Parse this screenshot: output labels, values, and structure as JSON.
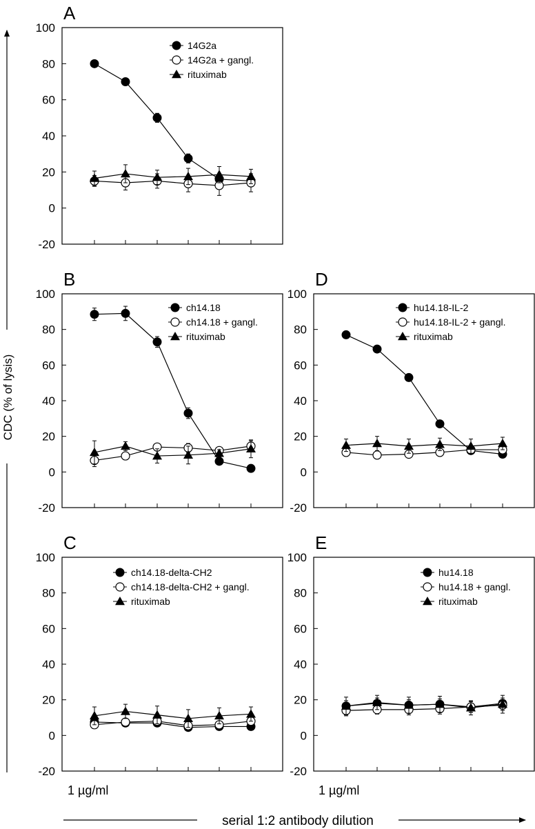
{
  "figure": {
    "y_axis_label": "CDC (% of lysis)",
    "x_axis_label": "serial 1:2 antibody dilution",
    "x_start_label": "1 µg/ml"
  },
  "chart_data": [
    {
      "panel": "A",
      "type": "line",
      "title": "",
      "xlabel": "",
      "ylabel": "CDC (% of lysis)",
      "ylim": [
        -20,
        100
      ],
      "yticks": [
        -20,
        0,
        20,
        40,
        60,
        80,
        100
      ],
      "x": [
        1,
        2,
        3,
        4,
        5,
        6
      ],
      "legend_position": "top-right",
      "series": [
        {
          "name": "14G2a",
          "marker": "filled-circle",
          "values": [
            80,
            70,
            50,
            27.5,
            16,
            15
          ],
          "errors": [
            1,
            2,
            2.5,
            2.5,
            3,
            2
          ]
        },
        {
          "name": "14G2a + gangl.",
          "marker": "open-circle",
          "values": [
            15,
            14,
            15,
            13.5,
            12.5,
            14
          ],
          "errors": [
            3,
            4,
            4,
            4.5,
            5.5,
            5
          ]
        },
        {
          "name": "rituximab",
          "marker": "filled-triangle",
          "values": [
            16.5,
            19,
            17,
            17.5,
            18.5,
            17.5
          ],
          "errors": [
            4,
            5,
            4,
            4.5,
            4.5,
            4
          ]
        }
      ]
    },
    {
      "panel": "B",
      "type": "line",
      "title": "",
      "xlabel": "",
      "ylabel": "CDC (% of lysis)",
      "ylim": [
        -20,
        100
      ],
      "yticks": [
        -20,
        0,
        20,
        40,
        60,
        80,
        100
      ],
      "x": [
        1,
        2,
        3,
        4,
        5,
        6
      ],
      "legend_position": "top-right",
      "series": [
        {
          "name": "ch14.18",
          "marker": "filled-circle",
          "values": [
            88.5,
            89,
            73,
            33,
            6,
            2
          ],
          "errors": [
            3.5,
            4,
            3,
            3,
            1.5,
            1
          ]
        },
        {
          "name": "ch14.18 + gangl.",
          "marker": "open-circle",
          "values": [
            6.5,
            9,
            14,
            13.5,
            12,
            14.5
          ],
          "errors": [
            3.5,
            1.5,
            1.5,
            2.5,
            2,
            3
          ]
        },
        {
          "name": "rituximab",
          "marker": "filled-triangle",
          "values": [
            11,
            14.5,
            9,
            9.5,
            10.5,
            13
          ],
          "errors": [
            6.5,
            2.5,
            4,
            5,
            2,
            5
          ]
        }
      ]
    },
    {
      "panel": "C",
      "type": "line",
      "title": "",
      "xlabel": "",
      "ylabel": "CDC (% of lysis)",
      "ylim": [
        -20,
        100
      ],
      "yticks": [
        -20,
        0,
        20,
        40,
        60,
        80,
        100
      ],
      "x": [
        1,
        2,
        3,
        4,
        5,
        6
      ],
      "legend_position": "top-right",
      "series": [
        {
          "name": "ch14.18-delta-CH2",
          "marker": "filled-circle",
          "values": [
            7.5,
            7,
            7,
            4.5,
            5,
            5
          ],
          "errors": [
            2,
            1.5,
            2,
            1.5,
            1.5,
            1.5
          ]
        },
        {
          "name": "ch14.18-delta-CH2 + gangl.",
          "marker": "open-circle",
          "values": [
            6,
            7.5,
            8,
            5.5,
            6,
            8
          ],
          "errors": [
            2,
            1.5,
            2,
            1.5,
            2,
            2
          ]
        },
        {
          "name": "rituximab",
          "marker": "filled-triangle",
          "values": [
            11,
            13.5,
            11.5,
            9.5,
            11,
            12
          ],
          "errors": [
            5,
            4,
            5,
            5,
            4.5,
            4
          ]
        }
      ]
    },
    {
      "panel": "D",
      "type": "line",
      "title": "",
      "xlabel": "",
      "ylabel": "CDC (% of lysis)",
      "ylim": [
        -20,
        100
      ],
      "yticks": [
        -20,
        0,
        20,
        40,
        60,
        80,
        100
      ],
      "x": [
        1,
        2,
        3,
        4,
        5,
        6
      ],
      "legend_position": "top-right",
      "series": [
        {
          "name": "hu14.18-IL-2",
          "marker": "filled-circle",
          "values": [
            77,
            69,
            53,
            27,
            12,
            10
          ],
          "errors": [
            1,
            1,
            1,
            1,
            1,
            1
          ]
        },
        {
          "name": "hu14.18-IL-2 + gangl.",
          "marker": "open-circle",
          "values": [
            11,
            9.5,
            10,
            11,
            12.5,
            12.5
          ],
          "errors": [
            2,
            1.5,
            2,
            1.5,
            2,
            2
          ]
        },
        {
          "name": "rituximab",
          "marker": "filled-triangle",
          "values": [
            15,
            16,
            14.5,
            15.5,
            14.5,
            16
          ],
          "errors": [
            3.5,
            4,
            4,
            3.5,
            4,
            3.5
          ]
        }
      ]
    },
    {
      "panel": "E",
      "type": "line",
      "title": "",
      "xlabel": "",
      "ylabel": "CDC (% of lysis)",
      "ylim": [
        -20,
        100
      ],
      "yticks": [
        -20,
        0,
        20,
        40,
        60,
        80,
        100
      ],
      "x": [
        1,
        2,
        3,
        4,
        5,
        6
      ],
      "legend_position": "top-right",
      "series": [
        {
          "name": "hu14.18",
          "marker": "filled-circle",
          "values": [
            16.5,
            18,
            17,
            17.5,
            16,
            18
          ],
          "errors": [
            3,
            3,
            3,
            3,
            3,
            3
          ]
        },
        {
          "name": "hu14.18 + gangl.",
          "marker": "open-circle",
          "values": [
            14,
            14.5,
            14.5,
            15,
            16,
            17
          ],
          "errors": [
            3,
            2.5,
            3,
            3,
            3,
            3
          ]
        },
        {
          "name": "rituximab",
          "marker": "filled-triangle",
          "values": [
            16.5,
            18.5,
            17,
            17.5,
            15.5,
            17.5
          ],
          "errors": [
            5,
            4,
            4.5,
            4.5,
            4,
            5
          ]
        }
      ]
    }
  ]
}
